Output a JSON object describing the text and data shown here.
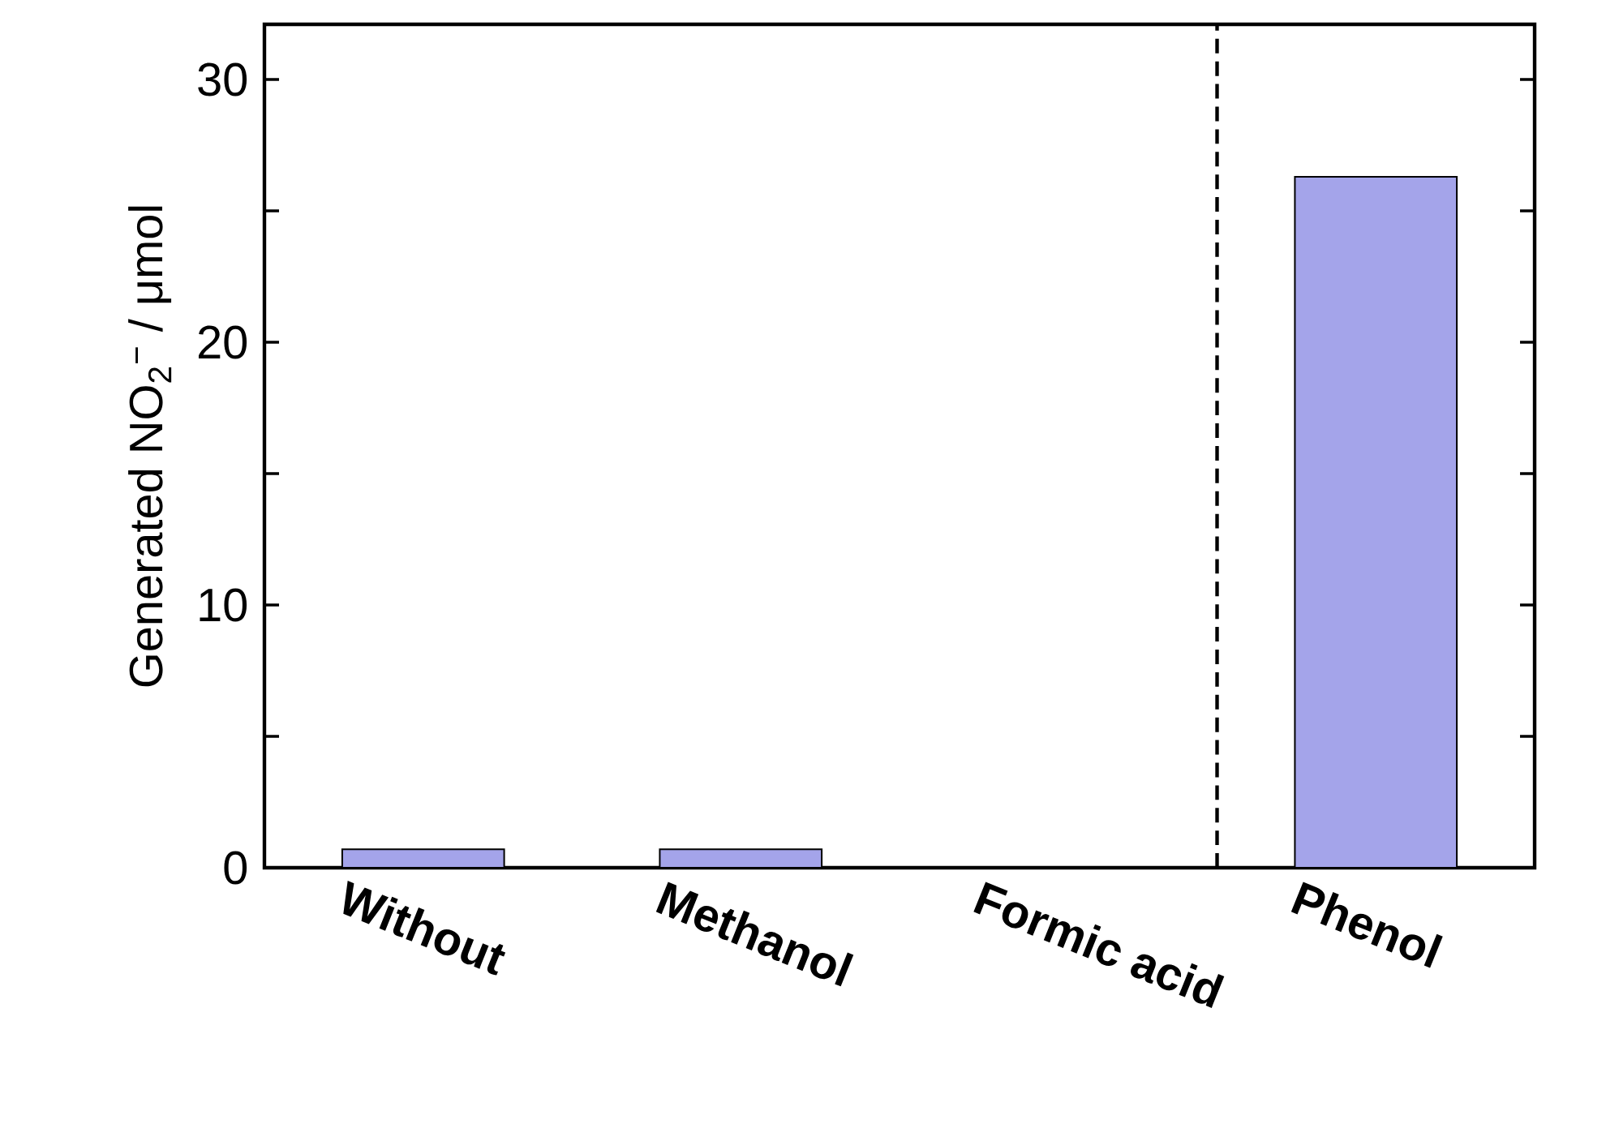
{
  "chart_data": {
    "type": "bar",
    "ylabel": "Generated NO$_{2}$$^{−}$ / μmol",
    "categories": [
      "Without",
      "Methanol",
      "Formic acid",
      "Phenol"
    ],
    "values": [
      0.7,
      0.7,
      null,
      26.3
    ],
    "color": "#a4a4ea",
    "ylim": [
      0,
      32.1
    ],
    "yticks": [
      0,
      {
        "value": 5,
        "label": null
      },
      10,
      {
        "value": 15,
        "label": null
      },
      20,
      {
        "value": 25,
        "label": null
      },
      30
    ],
    "grid": false
  }
}
